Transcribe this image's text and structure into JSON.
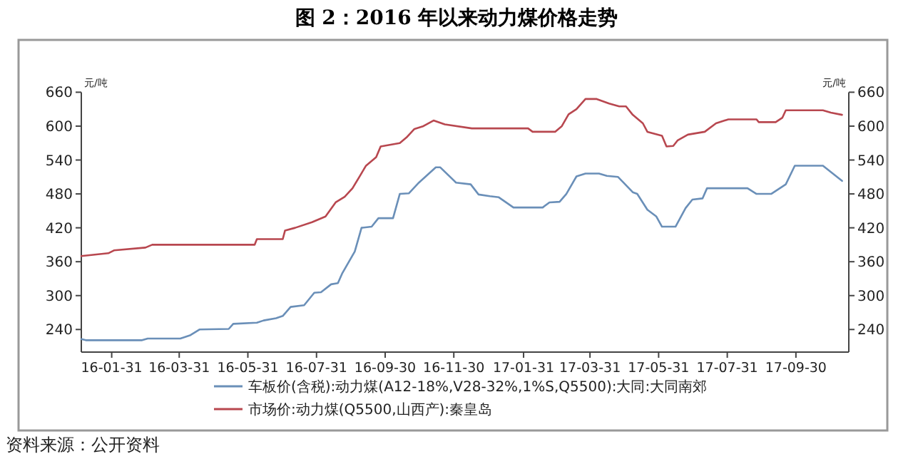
{
  "chart_data": {
    "type": "line",
    "title": "图 2：2016 年以来动力煤价格走势",
    "ylabel": "元/吨",
    "y2label": "元/吨",
    "annotations": [
      "资料来源：公开资料"
    ],
    "xlim": [
      "2016-01-04",
      "2017-11-16"
    ],
    "xticks": [
      {
        "value": "2016-01-31",
        "label": "16-01-31"
      },
      {
        "value": "2016-03-31",
        "label": "16-03-31"
      },
      {
        "value": "2016-05-31",
        "label": "16-05-31"
      },
      {
        "value": "2016-07-31",
        "label": "16-07-31"
      },
      {
        "value": "2016-09-30",
        "label": "16-09-30"
      },
      {
        "value": "2016-11-30",
        "label": "16-11-30"
      },
      {
        "value": "2017-01-31",
        "label": "17-01-31"
      },
      {
        "value": "2017-03-31",
        "label": "17-03-31"
      },
      {
        "value": "2017-05-31",
        "label": "17-05-31"
      },
      {
        "value": "2017-07-31",
        "label": "17-07-31"
      },
      {
        "value": "2017-09-30",
        "label": "17-09-30"
      }
    ],
    "ylim": [
      200,
      660
    ],
    "yticks": [
      240,
      300,
      360,
      420,
      480,
      540,
      600,
      660
    ],
    "y2lim": [
      200,
      660
    ],
    "y2ticks": [
      240,
      300,
      360,
      420,
      480,
      540,
      600,
      660
    ],
    "legend": "bottom",
    "grid": false,
    "marker": "none",
    "line_style": "solid",
    "series": [
      {
        "name": "车板价(含税):动力煤(A12-18%,V28-32%,1%S,Q5500):大同:大同南郊",
        "color": "#6a8fb8",
        "x": [
          "2016-01-04",
          "2016-01-08",
          "2016-02-27",
          "2016-03-03",
          "2016-04-01",
          "2016-04-10",
          "2016-04-18",
          "2016-05-14",
          "2016-05-18",
          "2016-06-08",
          "2016-06-14",
          "2016-06-25",
          "2016-07-01",
          "2016-07-08",
          "2016-07-20",
          "2016-07-29",
          "2016-08-04",
          "2016-08-13",
          "2016-08-19",
          "2016-08-23",
          "2016-09-03",
          "2016-09-09",
          "2016-09-18",
          "2016-09-24",
          "2016-10-07",
          "2016-10-13",
          "2016-10-21",
          "2016-10-30",
          "2016-11-14",
          "2016-11-18",
          "2016-12-02",
          "2016-12-15",
          "2016-12-22",
          "2017-01-01",
          "2017-01-09",
          "2017-01-22",
          "2017-02-17",
          "2017-02-23",
          "2017-03-04",
          "2017-03-10",
          "2017-03-19",
          "2017-03-27",
          "2017-04-08",
          "2017-04-15",
          "2017-04-25",
          "2017-05-08",
          "2017-05-12",
          "2017-05-21",
          "2017-05-29",
          "2017-06-03",
          "2017-06-15",
          "2017-06-24",
          "2017-06-30",
          "2017-07-09",
          "2017-07-13",
          "2017-08-18",
          "2017-08-26",
          "2017-09-08",
          "2017-09-21",
          "2017-09-29",
          "2017-10-24",
          "2017-11-10"
        ],
        "values": [
          223,
          221,
          221,
          224,
          224,
          230,
          240,
          241,
          250,
          252,
          256,
          260,
          264,
          280,
          283,
          305,
          306,
          320,
          322,
          340,
          378,
          420,
          422,
          437,
          437,
          480,
          481,
          500,
          527,
          527,
          500,
          497,
          479,
          476,
          474,
          456,
          456,
          465,
          466,
          480,
          511,
          516,
          516,
          512,
          510,
          483,
          480,
          452,
          440,
          422,
          422,
          455,
          470,
          472,
          490,
          490,
          480,
          480,
          497,
          530,
          530,
          503
        ]
      },
      {
        "name": "市场价:动力煤(Q5500,山西产):秦皇岛",
        "color": "#b8474f",
        "x": [
          "2016-01-04",
          "2016-01-28",
          "2016-02-02",
          "2016-03-01",
          "2016-03-07",
          "2016-06-06",
          "2016-06-08",
          "2016-07-01",
          "2016-07-03",
          "2016-07-12",
          "2016-07-27",
          "2016-08-08",
          "2016-08-17",
          "2016-08-25",
          "2016-09-01",
          "2016-09-07",
          "2016-09-13",
          "2016-09-22",
          "2016-09-26",
          "2016-10-13",
          "2016-10-19",
          "2016-10-26",
          "2016-11-03",
          "2016-11-12",
          "2016-11-22",
          "2016-12-16",
          "2017-02-04",
          "2017-02-08",
          "2017-02-28",
          "2017-03-06",
          "2017-03-12",
          "2017-03-19",
          "2017-03-27",
          "2017-04-06",
          "2017-04-17",
          "2017-04-26",
          "2017-05-02",
          "2017-05-08",
          "2017-05-17",
          "2017-05-21",
          "2017-06-03",
          "2017-06-07",
          "2017-06-13",
          "2017-06-17",
          "2017-06-26",
          "2017-07-11",
          "2017-07-21",
          "2017-08-01",
          "2017-08-26",
          "2017-08-28",
          "2017-09-12",
          "2017-09-18",
          "2017-09-21",
          "2017-10-24",
          "2017-10-31",
          "2017-11-10"
        ],
        "values": [
          370,
          375,
          380,
          385,
          390,
          390,
          400,
          400,
          415,
          420,
          430,
          440,
          465,
          475,
          490,
          510,
          530,
          545,
          564,
          570,
          580,
          595,
          600,
          610,
          603,
          596,
          596,
          590,
          590,
          600,
          621,
          630,
          648,
          648,
          640,
          635,
          635,
          620,
          605,
          590,
          583,
          564,
          565,
          575,
          585,
          590,
          605,
          612,
          612,
          607,
          607,
          615,
          628,
          628,
          624,
          620
        ]
      }
    ]
  }
}
